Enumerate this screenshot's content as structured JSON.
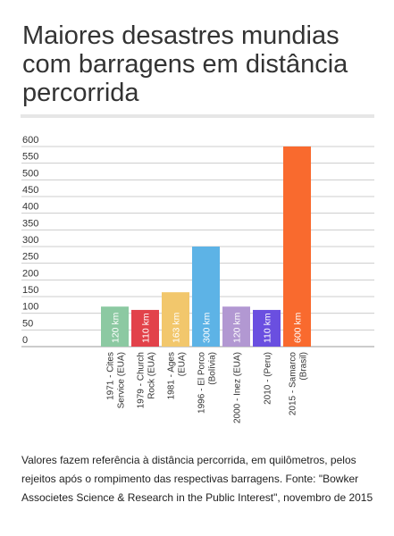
{
  "title": "Maiores desastres mundias com barragens em distância percorrida",
  "colors": {
    "text": "#333333",
    "grid": "#cccccc",
    "title_rule": "#e6e6e6"
  },
  "chart_data": {
    "type": "bar",
    "title": "Maiores desastres mundias com barragens em distância percorrida",
    "xlabel": "",
    "ylabel": "",
    "ylim": [
      0,
      600
    ],
    "yticks": [
      0,
      50,
      100,
      150,
      200,
      250,
      300,
      350,
      400,
      450,
      500,
      550,
      600
    ],
    "grid": true,
    "legend": "none",
    "categories": [
      [
        "1971 - Cites",
        "Service (EUA)"
      ],
      [
        "1979 - Church",
        "Rock (EUA)"
      ],
      [
        "1981 - Ages",
        "(EUA)"
      ],
      [
        "1996 - El Porco",
        "(Bolívia)"
      ],
      [
        "2000 - Inez (EUA)"
      ],
      [
        "2010 - (Peru)"
      ],
      [
        "2015 - Samarco",
        "(Brasil)"
      ]
    ],
    "values": [
      120,
      110,
      163,
      300,
      120,
      110,
      600
    ],
    "data_labels": [
      "120 km",
      "110 km",
      "163 km",
      "300 km",
      "120 km",
      "110 km",
      "600 km"
    ],
    "bar_colors": [
      "#8cc9a2",
      "#e2424a",
      "#f2c76c",
      "#5db3e6",
      "#b298d2",
      "#6a4fe0",
      "#f96a2e"
    ]
  },
  "note": "Valores fazem referência à distância percorrida, em quilômetros, pelos rejeitos após o rompimento das respectivas barragens. Fonte: \"Bowker Associetes Science & Research in the Public Interest\", novembro de 2015"
}
